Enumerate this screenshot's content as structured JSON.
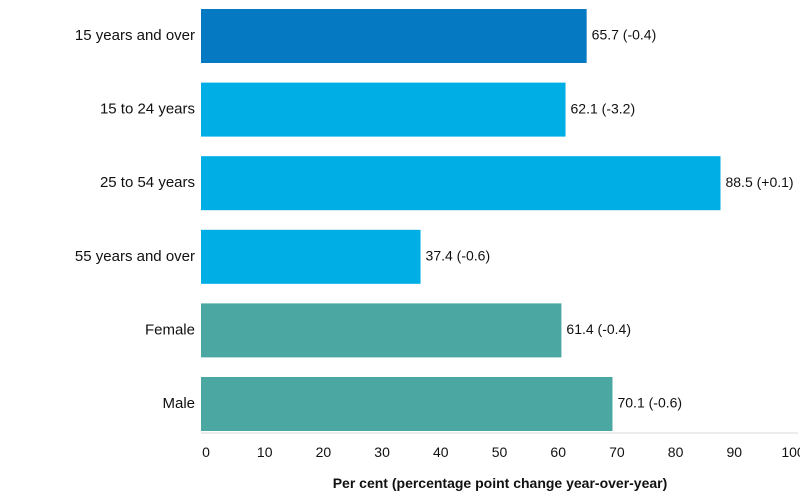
{
  "chart_data": {
    "type": "bar",
    "orientation": "horizontal",
    "title": "",
    "xlabel": "Per cent (percentage point change year-over-year)",
    "ylabel": "",
    "xlim": [
      0,
      100
    ],
    "xticks": [
      0,
      10,
      20,
      30,
      40,
      50,
      60,
      70,
      80,
      90,
      100
    ],
    "grid": false,
    "legend": "none",
    "categories": [
      "15 years and over",
      "15 to 24 years",
      "25 to 54 years",
      "55 years and over",
      "Female",
      "Male"
    ],
    "values": [
      65.7,
      62.1,
      88.5,
      37.4,
      61.4,
      70.1
    ],
    "changes": [
      -0.4,
      -3.2,
      0.1,
      -0.6,
      -0.4,
      -0.6
    ],
    "data_labels": [
      "65.7 (-0.4)",
      "62.1 (-3.2)",
      "88.5 (+0.1)",
      "37.4 (-0.6)",
      "61.4 (-0.4)",
      "70.1 (-0.6)"
    ],
    "colors": [
      "#0579c2",
      "#00aee6",
      "#00aee6",
      "#00aee6",
      "#4aa7a2",
      "#4aa7a2"
    ],
    "axis_color": "#d9d9d9"
  }
}
